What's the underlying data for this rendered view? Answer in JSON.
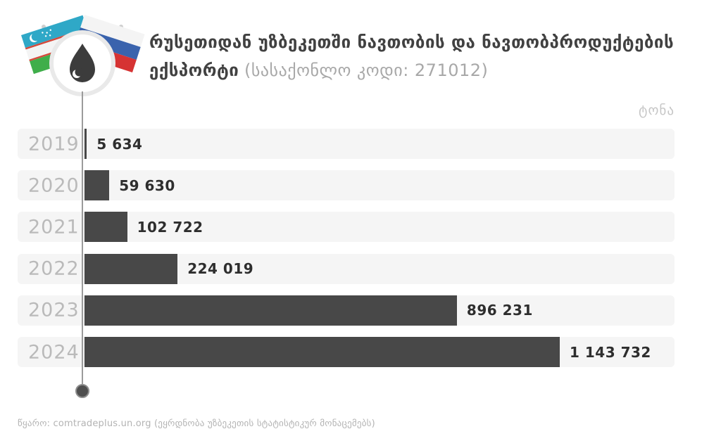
{
  "header": {
    "title_line1": "რუსეთიდან უზბეკეთში ნავთობის და ნავთობპროდუქტების",
    "title_line2_bold": "ექსპორტი",
    "title_line2_gray": "(სასაქონლო კოდი: 271012)",
    "logo_icons": [
      "uzbekistan-flag",
      "russia-flag",
      "oil-drop"
    ]
  },
  "chart_data": {
    "type": "bar",
    "orientation": "horizontal",
    "title": "რუსეთიდან უზბეკეთში ნავთობის და ნავთობპროდუქტების ექსპორტი (სასაქონლო კოდი: 271012)",
    "unit_label": "ტონა",
    "categories": [
      "2019",
      "2020",
      "2021",
      "2022",
      "2023",
      "2024"
    ],
    "values": [
      5634,
      59630,
      102722,
      224019,
      896231,
      1143732
    ],
    "value_labels": [
      "5 634",
      "59 630",
      "102 722",
      "224 019",
      "896 231",
      "1 143 732"
    ],
    "xlim": [
      0,
      1143732
    ],
    "value_axis_ticks_hidden": true,
    "grid": false,
    "legend": "none",
    "bar_color": "#484848",
    "row_background_color": "#f5f5f5",
    "category_label_color": "#bababa",
    "value_label_color": "#2e2e2e"
  },
  "footer": {
    "source": "წყარო: comtradeplus.un.org (ეყრდნობა უზბეკეთის სტატისტიკურ მონაცემებს)"
  },
  "colors": {
    "title_dark": "#414141",
    "title_gray": "#a8a8a8",
    "axis_line": "#9b9b9b",
    "uzbek_flag_azure": "#2fa8c7",
    "uzbek_flag_green": "#3fae4a",
    "uzbek_flag_red": "#d44a3c",
    "russia_flag_blue": "#3a63ad",
    "russia_flag_red": "#d63333"
  }
}
